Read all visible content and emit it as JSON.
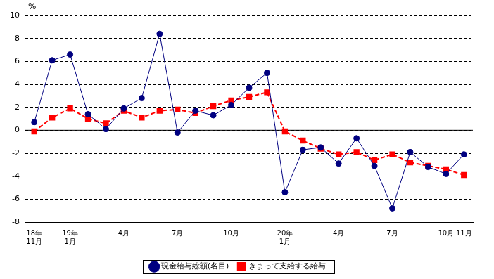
{
  "chart_data": {
    "type": "line",
    "y_label": "%",
    "categories": [
      "18年\n11月",
      null,
      "19年\n1月",
      null,
      null,
      "4月",
      null,
      null,
      "7月",
      null,
      null,
      "10月",
      null,
      null,
      "20年\n1月",
      null,
      null,
      "4月",
      null,
      null,
      "7月",
      null,
      null,
      "10月",
      "11月"
    ],
    "series": [
      {
        "name": "現金給与総額(名目)",
        "color": "#000080",
        "marker": "circle",
        "line_style": "solid",
        "values": [
          0.7,
          6.1,
          6.6,
          1.4,
          0.1,
          1.9,
          2.8,
          8.4,
          -0.2,
          1.7,
          1.3,
          2.2,
          3.7,
          5.0,
          -5.4,
          -1.7,
          -1.5,
          -2.9,
          -0.7,
          -3.1,
          -6.8,
          -1.9,
          -3.2,
          -3.8,
          -2.1
        ]
      },
      {
        "name": "きまって支給する給与",
        "color": "#ff0000",
        "marker": "square",
        "line_style": "dashed",
        "values": [
          -0.1,
          1.1,
          1.9,
          1.0,
          0.6,
          1.7,
          1.1,
          1.7,
          1.8,
          1.5,
          2.1,
          2.6,
          2.9,
          3.3,
          -0.1,
          -0.9,
          -1.6,
          -2.1,
          -1.9,
          -2.6,
          -2.1,
          -2.8,
          -3.1,
          -3.4,
          -3.9
        ]
      }
    ],
    "ylim": [
      -8,
      10
    ],
    "yticks": [
      -8,
      -6,
      -4,
      -2,
      0,
      2,
      4,
      6,
      8,
      10
    ],
    "grid": true,
    "legend": "bottom"
  }
}
